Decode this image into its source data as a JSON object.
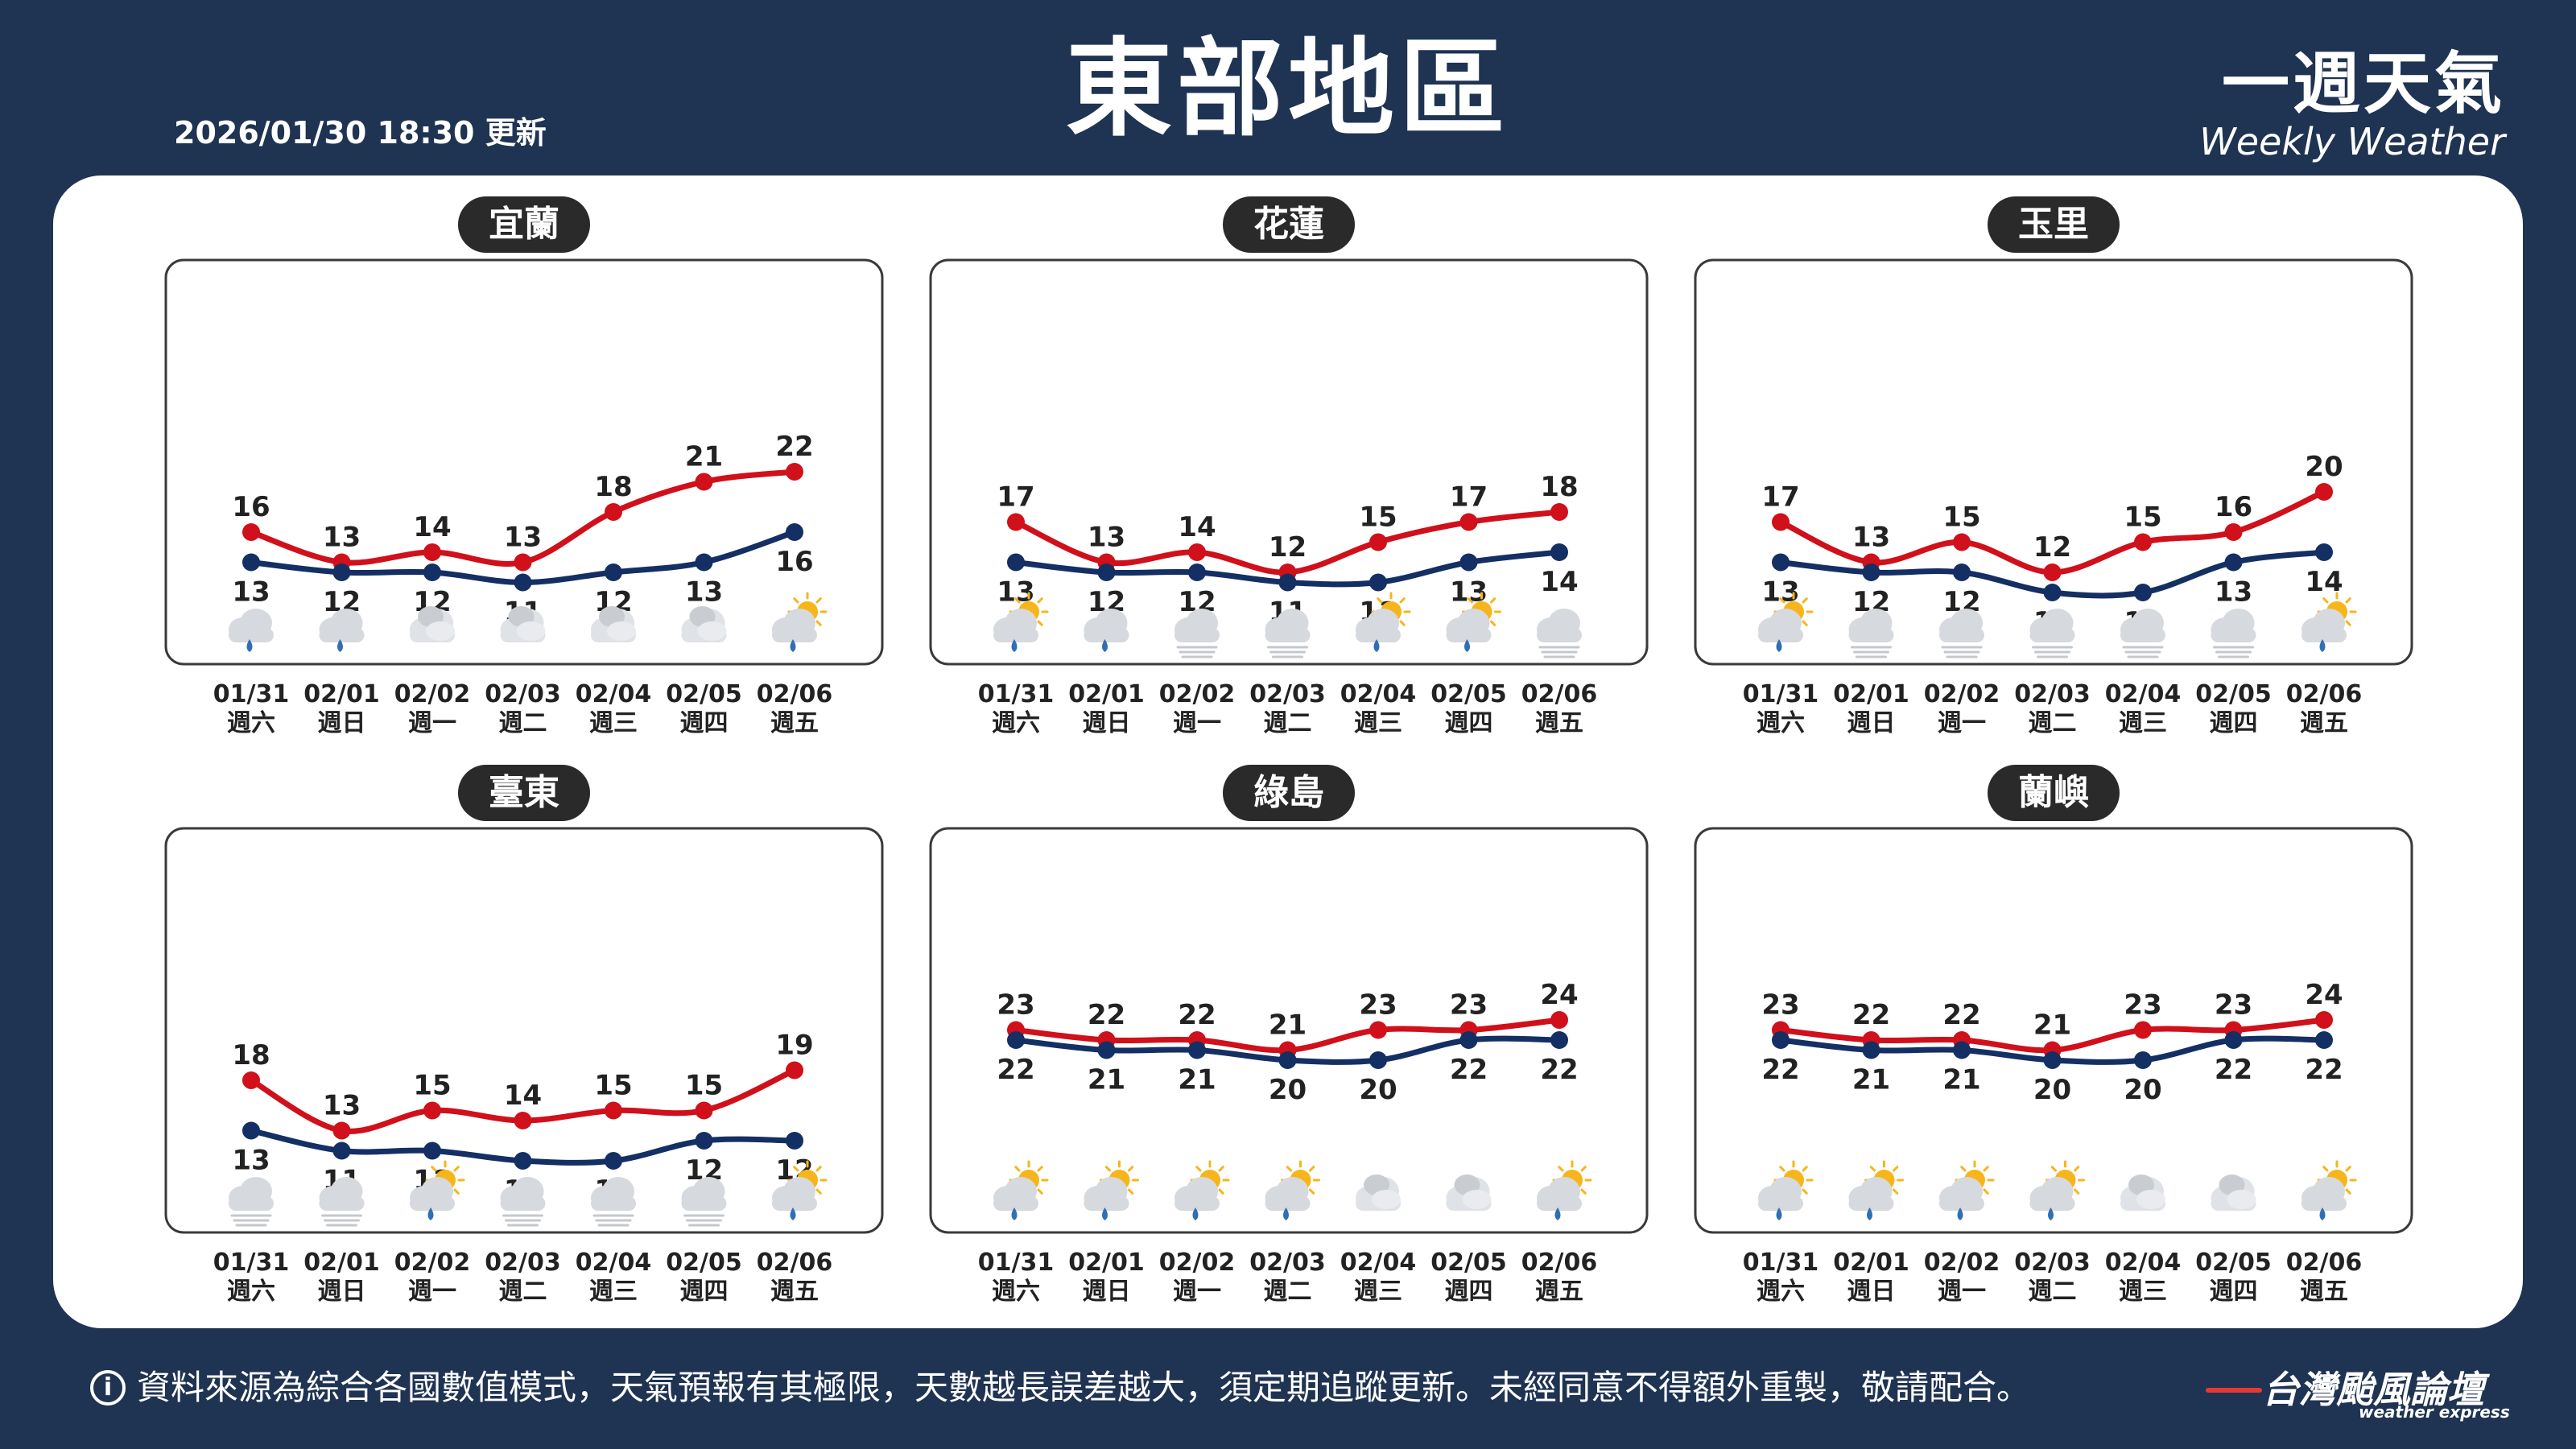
{
  "header": {
    "title": "東部地區",
    "updated": "2026/01/30 18:30 更新",
    "brand_main": "一週天氣",
    "brand_sub": "Weekly Weather"
  },
  "footer": {
    "disclaimer": "資料來源為綜合各國數值模式，天氣預報有其極限，天數越長誤差越大，須定期追蹤更新。未經同意不得額外重製，敬請配合。",
    "logo_main": "台灣颱風論壇",
    "logo_sub": "weather express"
  },
  "colors": {
    "background": "#1f3352",
    "high": "#d0101a",
    "low": "#142f63",
    "label": "#2a2a2a"
  },
  "chart_data": [
    {
      "type": "line",
      "title": "宜蘭",
      "categories": [
        "01/31",
        "02/01",
        "02/02",
        "02/03",
        "02/04",
        "02/05",
        "02/06"
      ],
      "weekdays": [
        "週六",
        "週日",
        "週一",
        "週二",
        "週三",
        "週四",
        "週五"
      ],
      "series": [
        {
          "values": [
            16,
            13,
            14,
            13,
            18,
            21,
            22
          ]
        },
        {
          "values": [
            13,
            12,
            12,
            11,
            12,
            13,
            16
          ]
        }
      ],
      "icons": [
        "cloud-rain-icon",
        "cloud-rain-icon",
        "cloudy-icon",
        "cloudy-icon",
        "cloudy-icon",
        "cloudy-icon",
        "partly-sunny-rain-icon"
      ]
    },
    {
      "type": "line",
      "title": "花蓮",
      "categories": [
        "01/31",
        "02/01",
        "02/02",
        "02/03",
        "02/04",
        "02/05",
        "02/06"
      ],
      "weekdays": [
        "週六",
        "週日",
        "週一",
        "週二",
        "週三",
        "週四",
        "週五"
      ],
      "series": [
        {
          "values": [
            17,
            13,
            14,
            12,
            15,
            17,
            18
          ]
        },
        {
          "values": [
            13,
            12,
            12,
            11,
            11,
            13,
            14
          ]
        }
      ],
      "icons": [
        "partly-sunny-rain-icon",
        "cloud-rain-icon",
        "cloud-fog-icon",
        "cloud-fog-icon",
        "partly-sunny-rain-icon",
        "partly-sunny-rain-icon",
        "cloud-fog-icon"
      ]
    },
    {
      "type": "line",
      "title": "玉里",
      "categories": [
        "01/31",
        "02/01",
        "02/02",
        "02/03",
        "02/04",
        "02/05",
        "02/06"
      ],
      "weekdays": [
        "週六",
        "週日",
        "週一",
        "週二",
        "週三",
        "週四",
        "週五"
      ],
      "series": [
        {
          "values": [
            17,
            13,
            15,
            12,
            15,
            16,
            20
          ]
        },
        {
          "values": [
            13,
            12,
            12,
            10,
            10,
            13,
            14
          ]
        }
      ],
      "icons": [
        "partly-sunny-rain-icon",
        "cloud-fog-icon",
        "cloud-fog-icon",
        "cloud-fog-icon",
        "cloud-fog-icon",
        "cloud-fog-icon",
        "partly-sunny-rain-icon"
      ]
    },
    {
      "type": "line",
      "title": "臺東",
      "categories": [
        "01/31",
        "02/01",
        "02/02",
        "02/03",
        "02/04",
        "02/05",
        "02/06"
      ],
      "weekdays": [
        "週六",
        "週日",
        "週一",
        "週二",
        "週三",
        "週四",
        "週五"
      ],
      "series": [
        {
          "values": [
            18,
            13,
            15,
            14,
            15,
            15,
            19
          ]
        },
        {
          "values": [
            13,
            11,
            11,
            10,
            10,
            12,
            12
          ]
        }
      ],
      "icons": [
        "cloud-fog-icon",
        "cloud-fog-icon",
        "partly-sunny-rain-icon",
        "cloud-fog-icon",
        "cloud-fog-icon",
        "cloud-fog-icon",
        "partly-sunny-rain-icon"
      ]
    },
    {
      "type": "line",
      "title": "綠島",
      "categories": [
        "01/31",
        "02/01",
        "02/02",
        "02/03",
        "02/04",
        "02/05",
        "02/06"
      ],
      "weekdays": [
        "週六",
        "週日",
        "週一",
        "週二",
        "週三",
        "週四",
        "週五"
      ],
      "series": [
        {
          "values": [
            23,
            22,
            22,
            21,
            23,
            23,
            24
          ]
        },
        {
          "values": [
            22,
            21,
            21,
            20,
            20,
            22,
            22
          ]
        }
      ],
      "icons": [
        "partly-sunny-rain-icon",
        "partly-sunny-rain-icon",
        "partly-sunny-rain-icon",
        "partly-sunny-rain-icon",
        "cloudy-icon",
        "cloudy-icon",
        "partly-sunny-rain-icon"
      ]
    },
    {
      "type": "line",
      "title": "蘭嶼",
      "categories": [
        "01/31",
        "02/01",
        "02/02",
        "02/03",
        "02/04",
        "02/05",
        "02/06"
      ],
      "weekdays": [
        "週六",
        "週日",
        "週一",
        "週二",
        "週三",
        "週四",
        "週五"
      ],
      "series": [
        {
          "values": [
            23,
            22,
            22,
            21,
            23,
            23,
            24
          ]
        },
        {
          "values": [
            22,
            21,
            21,
            20,
            20,
            22,
            22
          ]
        }
      ],
      "icons": [
        "partly-sunny-rain-icon",
        "partly-sunny-rain-icon",
        "partly-sunny-rain-icon",
        "partly-sunny-rain-icon",
        "cloudy-icon",
        "cloudy-icon",
        "partly-sunny-rain-icon"
      ]
    }
  ]
}
